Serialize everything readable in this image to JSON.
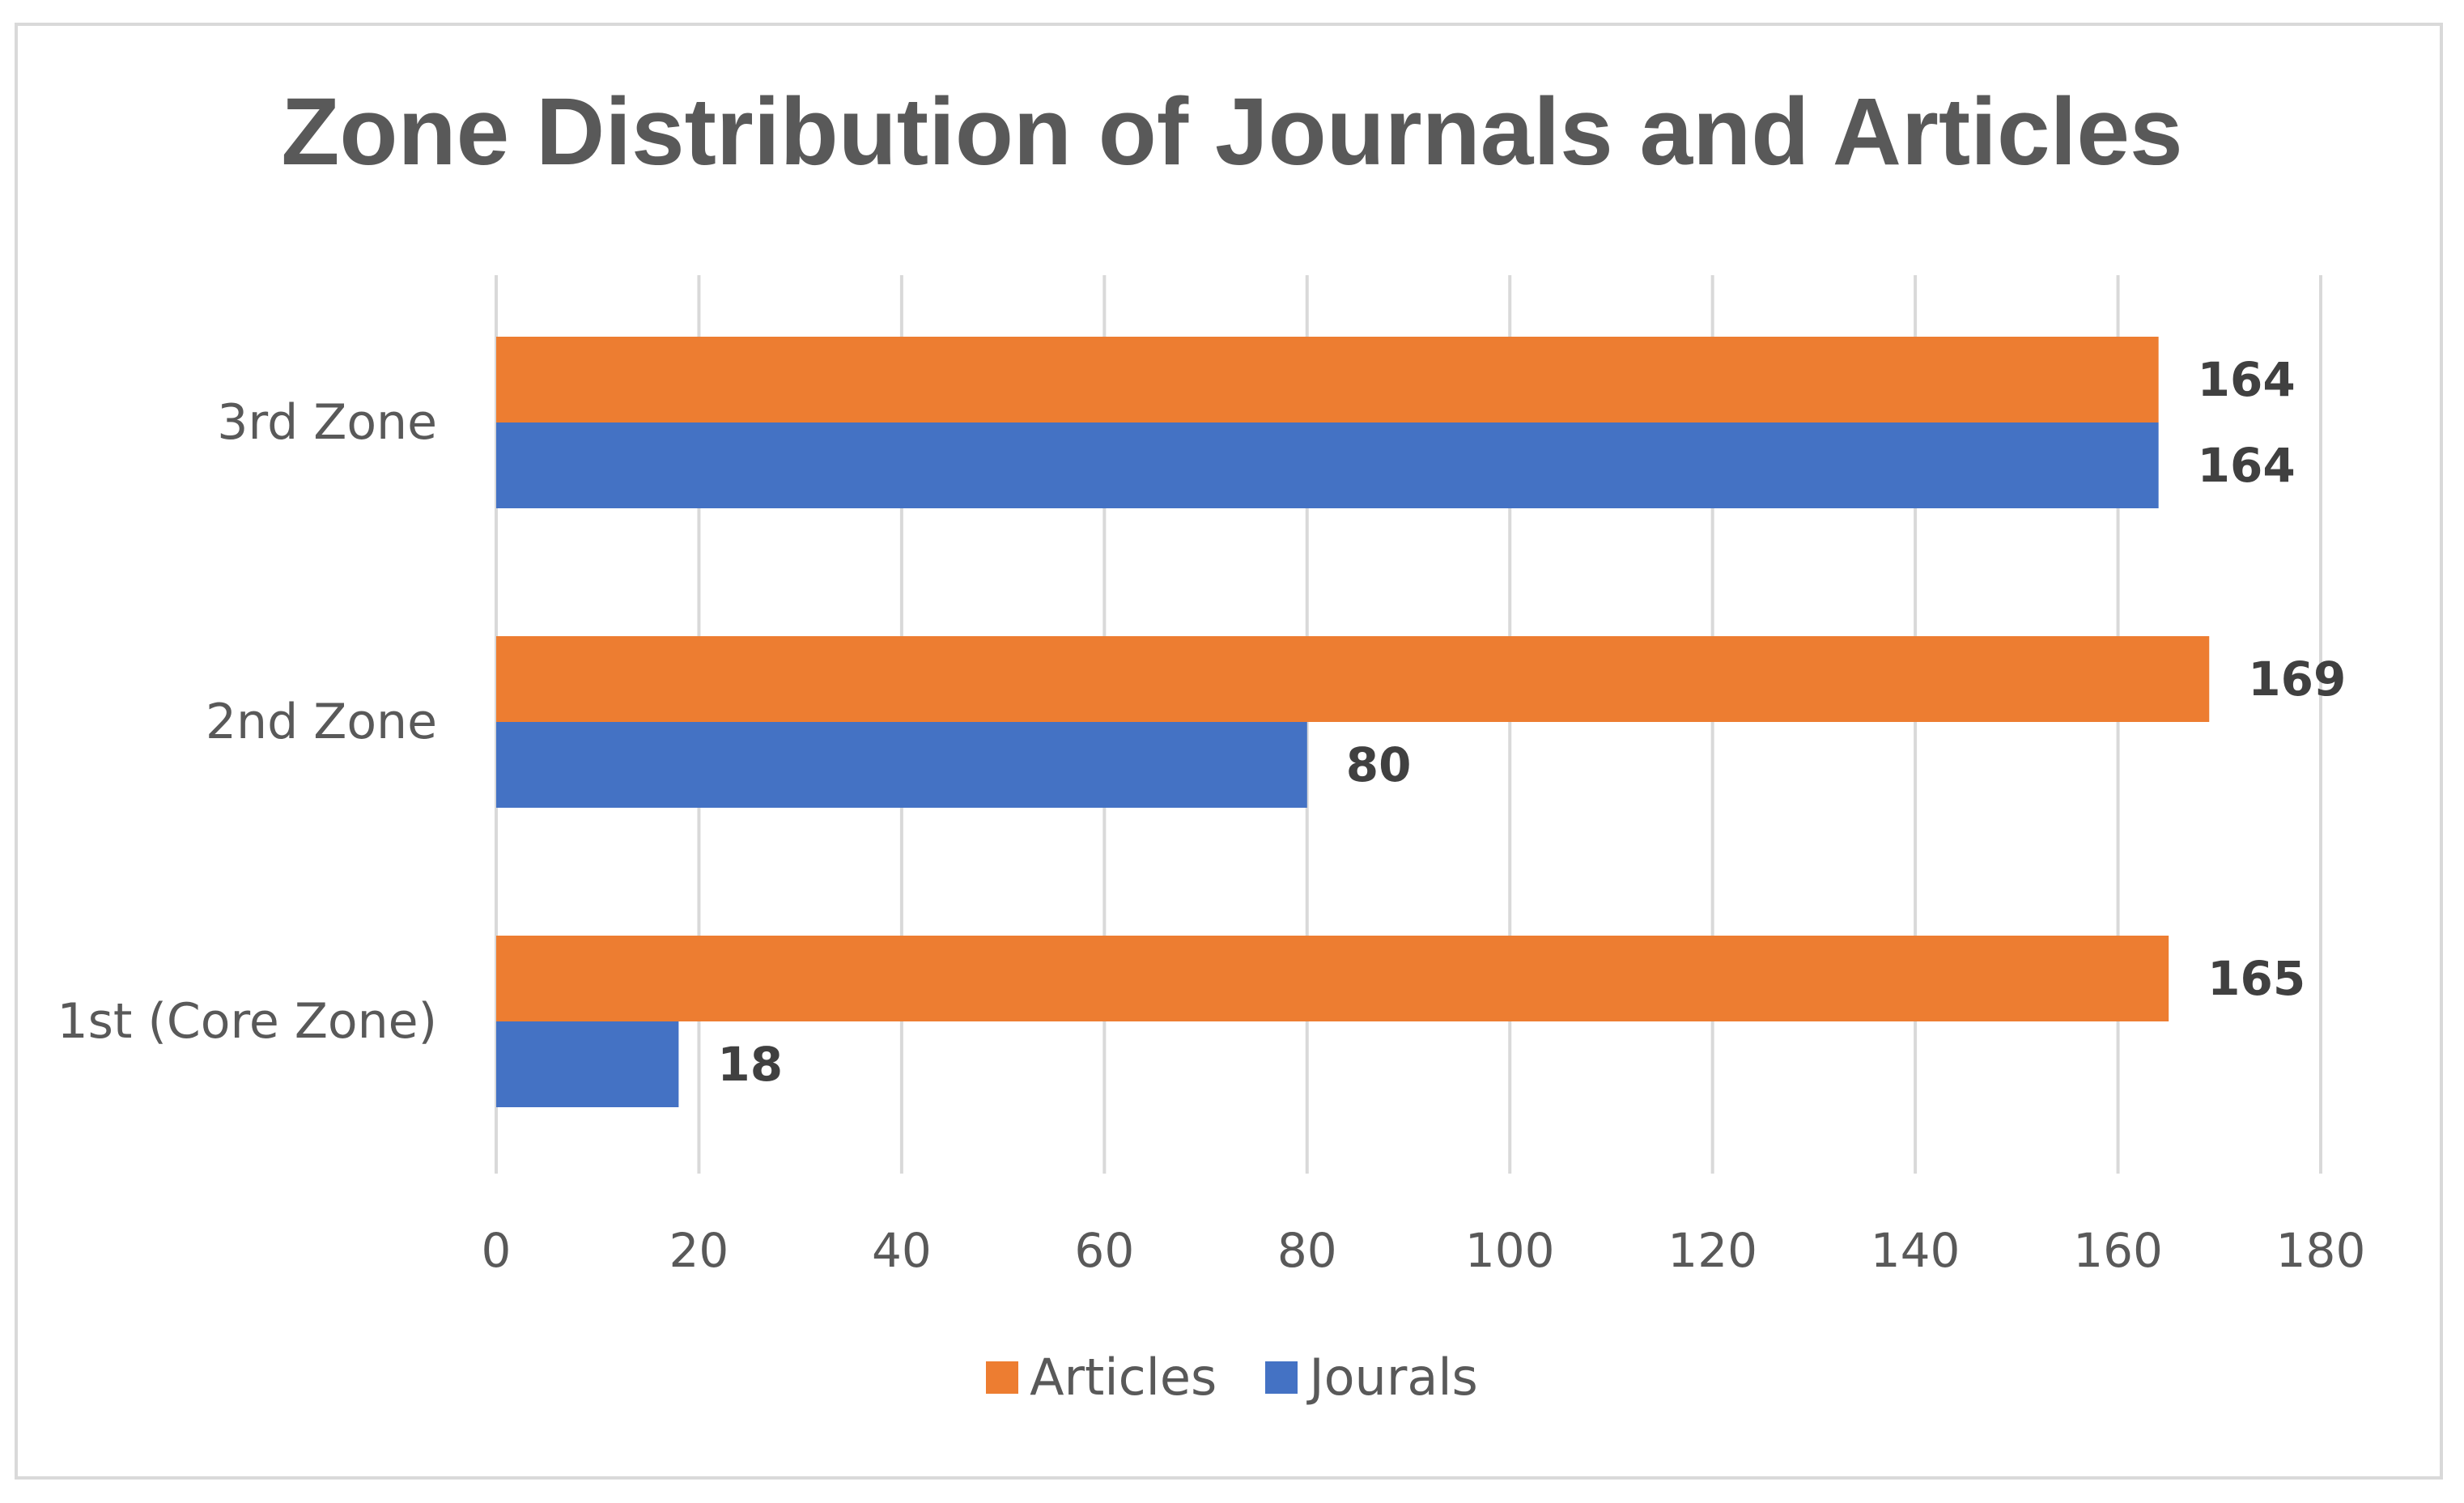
{
  "chart_data": {
    "type": "bar",
    "orientation": "horizontal",
    "title": "Zone Distribution of Journals and Articles",
    "categories": [
      "1st (Core Zone)",
      "2nd Zone",
      "3rd Zone"
    ],
    "series": [
      {
        "name": "Articles",
        "color": "#ED7D31",
        "values": [
          165,
          169,
          164
        ]
      },
      {
        "name": "Jourals",
        "color": "#4472C4",
        "values": [
          18,
          80,
          164
        ]
      }
    ],
    "xlim": [
      0,
      180
    ],
    "xticks": [
      "0",
      "20",
      "40",
      "60",
      "80",
      "100",
      "120",
      "140",
      "160",
      "180"
    ],
    "grid": true,
    "legend": "bottom-center",
    "data_labels": true
  }
}
